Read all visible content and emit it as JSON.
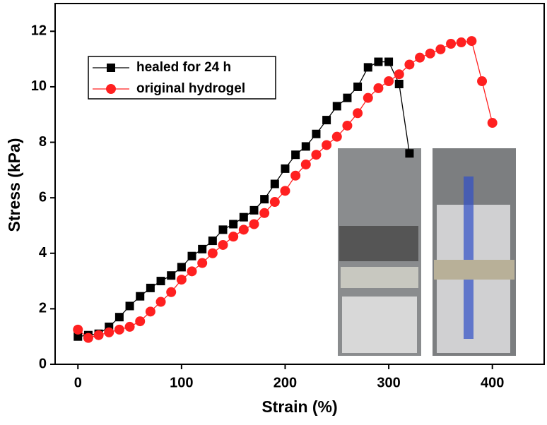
{
  "chart_data": {
    "type": "line",
    "x_label": "Strain (%)",
    "y_label": "Stress (kPa)",
    "xlim": [
      -22,
      450
    ],
    "ylim": [
      0,
      13
    ],
    "xticks": [
      0,
      100,
      200,
      300,
      400
    ],
    "yticks": [
      0,
      2,
      4,
      6,
      8,
      10,
      12
    ],
    "legend": "upper left",
    "series": [
      {
        "name": "healed for 24 h",
        "color": "#000000",
        "marker": "square",
        "x": [
          0,
          10,
          20,
          30,
          40,
          50,
          60,
          70,
          80,
          90,
          100,
          110,
          120,
          130,
          140,
          150,
          160,
          170,
          180,
          190,
          200,
          210,
          220,
          230,
          240,
          250,
          260,
          270,
          280,
          290,
          300,
          310,
          320
        ],
        "values": [
          1.0,
          1.05,
          1.1,
          1.35,
          1.7,
          2.1,
          2.45,
          2.75,
          3.0,
          3.2,
          3.5,
          3.9,
          4.15,
          4.45,
          4.85,
          5.05,
          5.3,
          5.55,
          5.95,
          6.5,
          7.05,
          7.55,
          7.85,
          8.3,
          8.8,
          9.3,
          9.6,
          10.0,
          10.7,
          10.9,
          10.9,
          10.1,
          7.6
        ]
      },
      {
        "name": "original hydrogel",
        "color": "#ff2020",
        "marker": "circle",
        "x": [
          0,
          10,
          20,
          30,
          40,
          50,
          60,
          70,
          80,
          90,
          100,
          110,
          120,
          130,
          140,
          150,
          160,
          170,
          180,
          190,
          200,
          210,
          220,
          230,
          240,
          250,
          260,
          270,
          280,
          290,
          300,
          310,
          320,
          330,
          340,
          350,
          360,
          370,
          380,
          390,
          400
        ],
        "values": [
          1.25,
          0.95,
          1.05,
          1.15,
          1.25,
          1.35,
          1.55,
          1.9,
          2.25,
          2.6,
          3.05,
          3.35,
          3.65,
          4.0,
          4.3,
          4.6,
          4.85,
          5.05,
          5.45,
          5.85,
          6.25,
          6.8,
          7.2,
          7.55,
          7.9,
          8.2,
          8.6,
          9.05,
          9.6,
          9.95,
          10.2,
          10.45,
          10.8,
          11.05,
          11.2,
          11.35,
          11.55,
          11.6,
          11.65,
          10.2,
          8.7
        ]
      }
    ]
  }
}
